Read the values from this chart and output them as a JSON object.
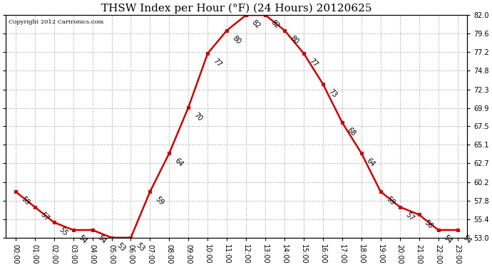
{
  "title": "THSW Index per Hour (°F) (24 Hours) 20120625",
  "copyright": "Copyright 2012 Cartronics.com",
  "hours": [
    0,
    1,
    2,
    3,
    4,
    5,
    6,
    7,
    8,
    9,
    10,
    11,
    12,
    13,
    14,
    15,
    16,
    17,
    18,
    19,
    20,
    21,
    22,
    23
  ],
  "values": [
    59,
    57,
    55,
    54,
    54,
    53,
    53,
    59,
    64,
    70,
    77,
    80,
    82,
    82,
    80,
    77,
    73,
    68,
    64,
    59,
    57,
    56,
    54,
    54
  ],
  "line_color": "#cc0000",
  "marker_color": "#cc0000",
  "marker": "s",
  "marker_size": 3,
  "line_width": 1.8,
  "ylim": [
    53.0,
    82.0
  ],
  "yticks_right": [
    53.0,
    55.4,
    57.8,
    60.2,
    62.7,
    65.1,
    67.5,
    69.9,
    72.3,
    74.8,
    77.2,
    79.6,
    82.0
  ],
  "background_color": "#ffffff",
  "plot_bg_color": "#ffffff",
  "grid_color": "#bbbbbb",
  "title_fontsize": 11,
  "tick_fontsize": 7,
  "annot_fontsize": 7,
  "annot_rotation": 315,
  "xlabel_labels": [
    "00:00",
    "01:00",
    "02:00",
    "03:00",
    "04:00",
    "05:00",
    "06:00",
    "07:00",
    "08:00",
    "09:00",
    "10:00",
    "11:00",
    "12:00",
    "13:00",
    "14:00",
    "15:00",
    "16:00",
    "17:00",
    "18:00",
    "19:00",
    "20:00",
    "21:00",
    "22:00",
    "23:00"
  ]
}
